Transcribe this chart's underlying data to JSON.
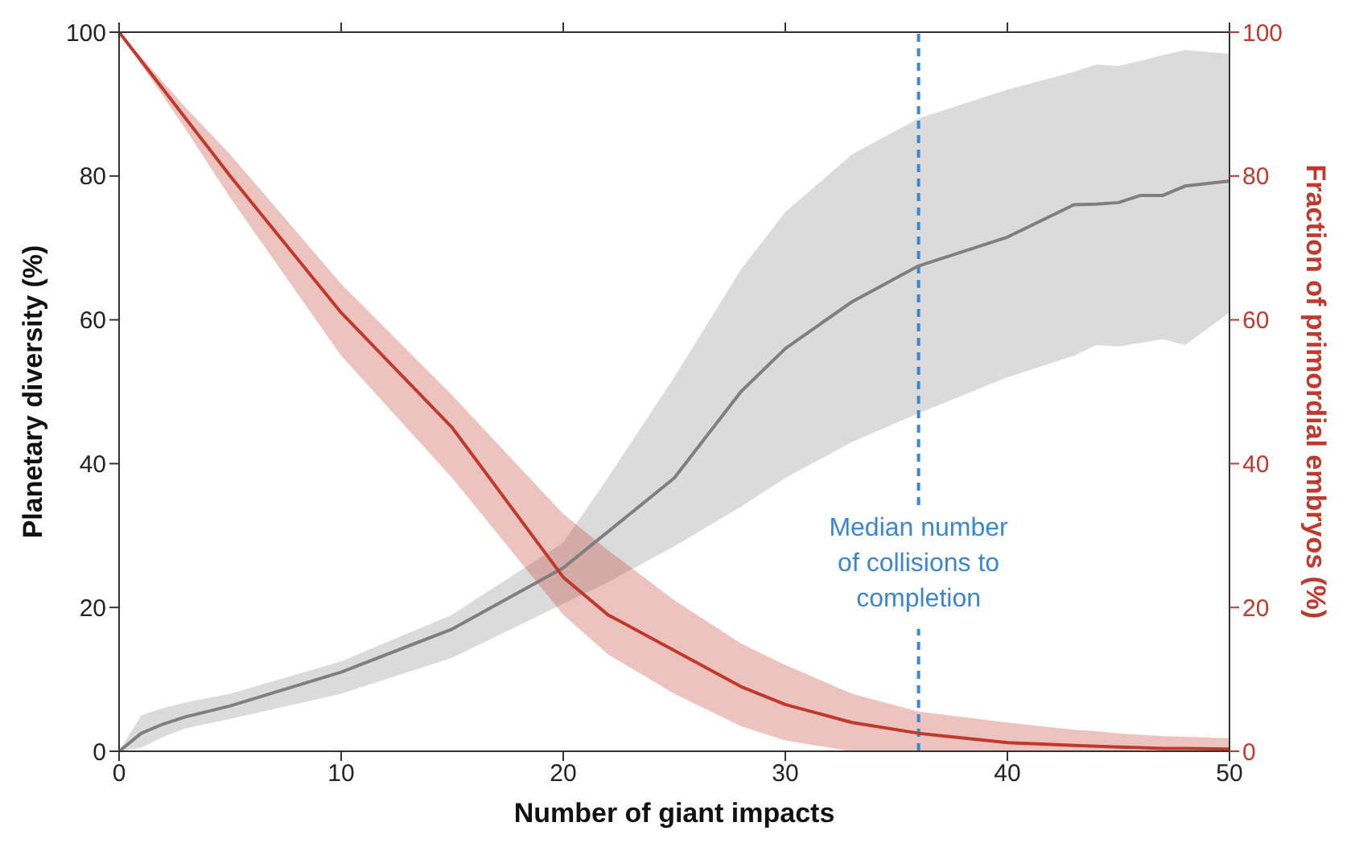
{
  "chart_data": {
    "type": "line",
    "xlabel": "Number of giant impacts",
    "ylabel": "Planetary diversity (%)",
    "y2label": "Fraction of primordial embryos (%)",
    "x": [
      0,
      1,
      2,
      3,
      5,
      10,
      15,
      20,
      22,
      25,
      28,
      30,
      33,
      36,
      40,
      43,
      44,
      45,
      46,
      47,
      48,
      50
    ],
    "series": [
      {
        "color": "#7f7f7f",
        "axis": "y",
        "values": [
          0,
          2.5,
          3.8,
          4.8,
          6.3,
          11,
          17,
          25.5,
          30.5,
          38,
          50,
          56,
          62.5,
          67.5,
          71.5,
          76,
          76.1,
          76.3,
          77.3,
          77.3,
          78.6,
          79.3
        ],
        "lower": [
          0,
          0.5,
          2,
          3.2,
          4.5,
          8,
          13,
          20.5,
          23.5,
          28.5,
          34,
          38,
          43,
          47,
          52,
          55,
          56.5,
          56.3,
          56.8,
          57.3,
          56.5,
          61
        ],
        "upper": [
          0,
          5,
          6,
          6.8,
          8,
          12.5,
          19,
          29,
          38,
          52,
          67,
          75,
          83,
          88,
          92,
          94.5,
          95.5,
          95.3,
          96,
          96.8,
          97.5,
          97
        ]
      },
      {
        "color": "#c0392b",
        "axis": "y2",
        "values": [
          100,
          96,
          92,
          88,
          80,
          61,
          45,
          24.2,
          19,
          14,
          9,
          6.5,
          4,
          2.5,
          1.2,
          0.8,
          0.7,
          0.6,
          0.5,
          0.4,
          0.4,
          0.3
        ],
        "lower": [
          100,
          95.5,
          91,
          86.5,
          77,
          55,
          38,
          19,
          13.5,
          8,
          3.5,
          1.5,
          0,
          0,
          0,
          0,
          0,
          0,
          0,
          0,
          0,
          0
        ],
        "upper": [
          100,
          96.5,
          93,
          89.5,
          83,
          65,
          49.5,
          33,
          28,
          21,
          15,
          12,
          8,
          5.5,
          4,
          3,
          2.8,
          2.5,
          2.3,
          2.1,
          2,
          1.8
        ]
      }
    ],
    "xlim": [
      0,
      50
    ],
    "xticks": [
      0,
      10,
      20,
      30,
      40,
      50
    ],
    "ylim": [
      0,
      100
    ],
    "yticks": [
      0,
      20,
      40,
      60,
      80,
      100
    ],
    "y2lim": [
      0,
      100
    ],
    "y2ticks": [
      0,
      20,
      40,
      60,
      80,
      100
    ],
    "ref_lines": [
      {
        "axis": "x",
        "value": 36,
        "label": "Median number\nof collisions to\ncompletion",
        "color": "#3a87d0",
        "line_style": "dashed"
      }
    ],
    "grid": false,
    "legend": false,
    "line_style": "solid",
    "marker": "none"
  }
}
